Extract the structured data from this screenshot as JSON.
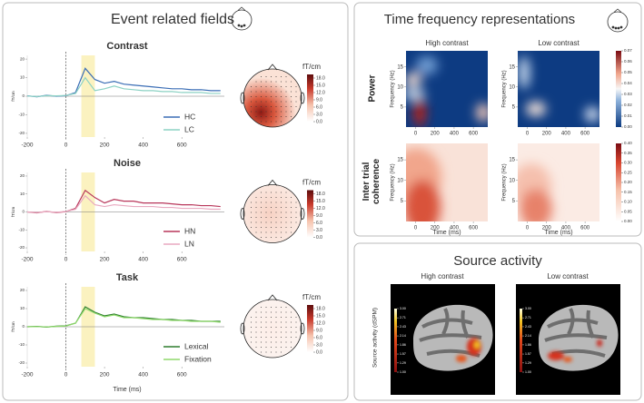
{
  "figure": {
    "erf_title": "Event related fields",
    "tf_title": "Time frequency representations",
    "source_title": "Source activity"
  },
  "chart_data": [
    {
      "type": "line",
      "title": "Contrast",
      "y_label": "fT/cm",
      "x": [
        -200,
        -150,
        -100,
        -50,
        0,
        50,
        100,
        150,
        200,
        250,
        300,
        350,
        400,
        450,
        500,
        550,
        600,
        650,
        700,
        750,
        800
      ],
      "series": [
        {
          "name": "HC",
          "color": "#3a6db5",
          "values": [
            0.2,
            -0.3,
            0.5,
            0,
            0.3,
            2,
            15,
            9,
            7,
            8,
            6.5,
            6,
            5.5,
            5,
            4.5,
            4,
            4,
            3.5,
            3.5,
            3,
            3
          ]
        },
        {
          "name": "LC",
          "color": "#8cd2c4",
          "values": [
            0.1,
            -0.2,
            0.3,
            0.2,
            0.4,
            1.5,
            10,
            3,
            4,
            5.5,
            4,
            3.5,
            3,
            3,
            2.5,
            2.5,
            2,
            2,
            2,
            1.5,
            1.5
          ]
        }
      ],
      "xlim": [
        -200,
        820
      ],
      "ylim": [
        -22,
        22
      ],
      "xticks": [
        -200,
        0,
        200,
        400,
        600
      ],
      "yticks": [
        -20,
        -10,
        0,
        10,
        20
      ],
      "highlight_x": [
        80,
        150
      ],
      "legend": "lower right",
      "topomap": {
        "unit": "fT/cm",
        "lim": [
          0,
          19.5
        ],
        "ticks": [
          {
            "value": 0,
            "label": "0.0"
          },
          {
            "value": 3,
            "label": "3.0"
          },
          {
            "value": 6,
            "label": "6.0"
          },
          {
            "value": 9,
            "label": "9.0"
          },
          {
            "value": 12,
            "label": "12.0"
          },
          {
            "value": 15,
            "label": "15.0"
          },
          {
            "value": 18,
            "label": "18.0"
          }
        ]
      }
    },
    {
      "type": "line",
      "title": "Noise",
      "y_label": "fT/cm",
      "x": [
        -200,
        -150,
        -100,
        -50,
        0,
        50,
        100,
        150,
        200,
        250,
        300,
        350,
        400,
        450,
        500,
        550,
        600,
        650,
        700,
        750,
        800
      ],
      "series": [
        {
          "name": "HN",
          "color": "#b8365a",
          "values": [
            0,
            -0.5,
            0.3,
            -0.4,
            0.2,
            2,
            12,
            8,
            5,
            7,
            6,
            6,
            5,
            5,
            5,
            4.5,
            4,
            4,
            3.5,
            3.5,
            3
          ]
        },
        {
          "name": "LN",
          "color": "#e9a9c0",
          "values": [
            0,
            -0.3,
            0.2,
            -0.2,
            0.3,
            1.5,
            9,
            4,
            3,
            4,
            3.5,
            3,
            3,
            3,
            2.5,
            2.5,
            2,
            2,
            2,
            1.5,
            1.5
          ]
        }
      ],
      "xlim": [
        -200,
        820
      ],
      "ylim": [
        -22,
        22
      ],
      "xticks": [
        -200,
        0,
        200,
        400,
        600
      ],
      "yticks": [
        -20,
        -10,
        0,
        10,
        20
      ],
      "highlight_x": [
        80,
        150
      ],
      "legend": "lower right",
      "topomap": {
        "unit": "fT/cm",
        "lim": [
          0,
          19.5
        ],
        "ticks": [
          {
            "value": 0,
            "label": "0.0"
          },
          {
            "value": 3,
            "label": "3.0"
          },
          {
            "value": 6,
            "label": "6.0"
          },
          {
            "value": 9,
            "label": "9.0"
          },
          {
            "value": 12,
            "label": "12.0"
          },
          {
            "value": 15,
            "label": "15.0"
          },
          {
            "value": 18,
            "label": "18.0"
          }
        ]
      }
    },
    {
      "type": "line",
      "title": "Task",
      "y_label": "fT/cm",
      "x_label": "Time (ms)",
      "x": [
        -200,
        -150,
        -100,
        -50,
        0,
        50,
        100,
        150,
        200,
        250,
        300,
        350,
        400,
        450,
        500,
        550,
        600,
        650,
        700,
        750,
        800
      ],
      "series": [
        {
          "name": "Lexical",
          "color": "#2e7d2e",
          "values": [
            0,
            0.2,
            -0.2,
            0.3,
            0.5,
            2,
            11,
            8,
            6,
            7,
            5.5,
            5,
            5,
            4.5,
            4,
            4,
            3.5,
            3.5,
            3,
            3,
            3
          ]
        },
        {
          "name": "Fixation",
          "color": "#8fd96b",
          "values": [
            0,
            0.1,
            -0.1,
            0.2,
            0.4,
            2,
            10,
            7.5,
            5.5,
            6.5,
            5,
            5,
            4.5,
            4,
            4,
            3.5,
            3.5,
            3,
            3,
            3,
            2.5
          ]
        }
      ],
      "xlim": [
        -200,
        820
      ],
      "ylim": [
        -22,
        22
      ],
      "xticks": [
        -200,
        0,
        200,
        400,
        600
      ],
      "yticks": [
        -20,
        -10,
        0,
        10,
        20
      ],
      "highlight_x": [
        80,
        150
      ],
      "legend": "lower right",
      "topomap": {
        "unit": "fT/cm",
        "lim": [
          0,
          19.5
        ],
        "ticks": [
          {
            "value": 0,
            "label": "0.0"
          },
          {
            "value": 3,
            "label": "3.0"
          },
          {
            "value": 6,
            "label": "6.0"
          },
          {
            "value": 9,
            "label": "9.0"
          },
          {
            "value": 12,
            "label": "12.0"
          },
          {
            "value": 15,
            "label": "15.0"
          },
          {
            "value": 18,
            "label": "18.0"
          }
        ]
      }
    }
  ],
  "time_frequency": {
    "columns": [
      "High contrast",
      "Low contrast"
    ],
    "rows": [
      {
        "label": "Power",
        "lim": [
          0,
          0.07
        ],
        "colorbar": [
          {
            "value": 0,
            "label": "0.00"
          },
          0.01,
          0.02,
          0.03,
          0.04,
          0.05,
          0.06,
          0.07
        ]
      },
      {
        "label": "Inter trial coherence",
        "lim": [
          0,
          0.4
        ],
        "colorbar": [
          {
            "value": 0,
            "label": "0.00"
          },
          0.05,
          {
            "value": 0.1,
            "label": "0.10"
          },
          0.15,
          {
            "value": 0.2,
            "label": "0.20"
          },
          0.25,
          {
            "value": 0.3,
            "label": "0.30"
          },
          0.35,
          {
            "value": 0.4,
            "label": "0.40"
          }
        ]
      }
    ],
    "y_label": "Frequency (Hz)",
    "x_label": "Time (ms)",
    "xlim": [
      -100,
      750
    ],
    "ylim": [
      0,
      19
    ],
    "xticks": [
      0,
      200,
      400,
      600
    ],
    "yticks": [
      5,
      10,
      15
    ]
  },
  "source_activity": {
    "columns": [
      "High contrast",
      "Low contrast"
    ],
    "y_label": "Source activity (dSPM)",
    "lim": [
      1,
      3
    ],
    "colorbar": [
      {
        "value": 1,
        "label": "1.00"
      },
      1.29,
      1.57,
      1.86,
      2.14,
      2.43,
      2.71,
      {
        "value": 3,
        "label": "3.00"
      }
    ]
  }
}
